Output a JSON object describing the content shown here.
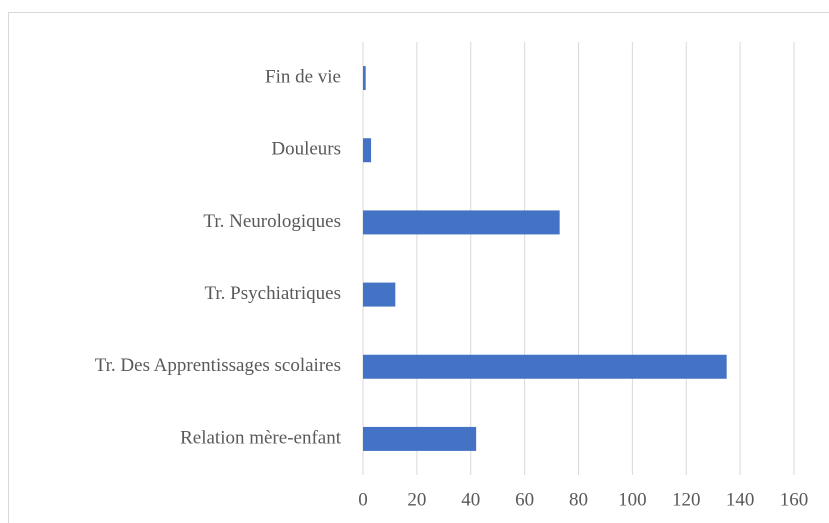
{
  "chart_data": {
    "type": "bar",
    "orientation": "horizontal",
    "categories": [
      "Fin de vie",
      "Douleurs",
      "Tr. Neurologiques",
      "Tr. Psychiatriques",
      "Tr. Des Apprentissages scolaires",
      "Relation mère-enfant"
    ],
    "values": [
      1,
      3,
      73,
      12,
      135,
      42
    ],
    "color": "#4472c4",
    "xlim": [
      0,
      160
    ],
    "xticks": [
      0,
      20,
      40,
      60,
      80,
      100,
      120,
      140,
      160
    ],
    "grid": true
  }
}
